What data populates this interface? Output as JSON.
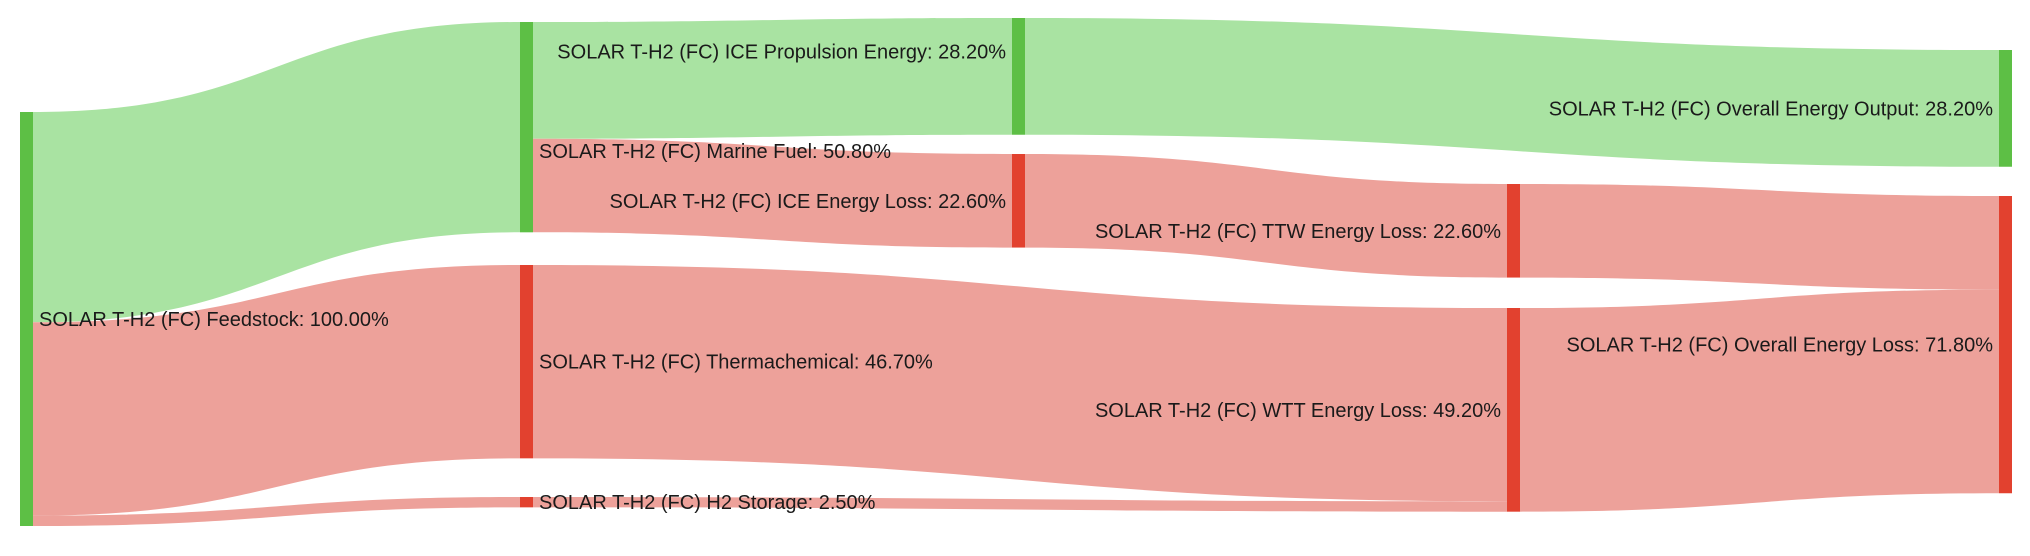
{
  "colors": {
    "green_node": "#5dbf45",
    "red_node": "#e2412f",
    "green_link": "#a9e3a2",
    "red_link": "#eda19a",
    "text": "#1a1a1a"
  },
  "nodes": [
    {
      "id": "feedstock",
      "label": "SOLAR T-H2 (FC) Feedstock: 100.00%",
      "color": "green"
    },
    {
      "id": "marine_fuel",
      "label": "SOLAR T-H2 (FC) Marine Fuel: 50.80%",
      "color": "green"
    },
    {
      "id": "thermachemical",
      "label": "SOLAR T-H2 (FC) Thermachemical: 46.70%",
      "color": "red"
    },
    {
      "id": "h2_storage",
      "label": "SOLAR T-H2 (FC) H2 Storage: 2.50%",
      "color": "red"
    },
    {
      "id": "ice_propulsion",
      "label": "SOLAR T-H2 (FC) ICE Propulsion Energy: 28.20%",
      "color": "green"
    },
    {
      "id": "ice_loss",
      "label": "SOLAR T-H2 (FC) ICE Energy Loss: 22.60%",
      "color": "red"
    },
    {
      "id": "ttw_loss",
      "label": "SOLAR T-H2 (FC) TTW Energy Loss: 22.60%",
      "color": "red"
    },
    {
      "id": "wtt_loss",
      "label": "SOLAR T-H2 (FC) WTT Energy Loss: 49.20%",
      "color": "red"
    },
    {
      "id": "overall_output",
      "label": "SOLAR T-H2 (FC) Overall Energy Output: 28.20%",
      "color": "green"
    },
    {
      "id": "overall_loss",
      "label": "SOLAR T-H2 (FC) Overall Energy Loss: 71.80%",
      "color": "red"
    }
  ],
  "links": [
    {
      "source": "feedstock",
      "target": "marine_fuel",
      "value": 50.8,
      "color": "green"
    },
    {
      "source": "feedstock",
      "target": "thermachemical",
      "value": 46.7,
      "color": "red"
    },
    {
      "source": "feedstock",
      "target": "h2_storage",
      "value": 2.5,
      "color": "red"
    },
    {
      "source": "marine_fuel",
      "target": "ice_propulsion",
      "value": 28.2,
      "color": "green"
    },
    {
      "source": "marine_fuel",
      "target": "ice_loss",
      "value": 22.6,
      "color": "red"
    },
    {
      "source": "ice_propulsion",
      "target": "overall_output",
      "value": 28.2,
      "color": "green"
    },
    {
      "source": "ice_loss",
      "target": "ttw_loss",
      "value": 22.6,
      "color": "red"
    },
    {
      "source": "thermachemical",
      "target": "wtt_loss",
      "value": 46.7,
      "color": "red"
    },
    {
      "source": "h2_storage",
      "target": "wtt_loss",
      "value": 2.5,
      "color": "red"
    },
    {
      "source": "ttw_loss",
      "target": "overall_loss",
      "value": 22.6,
      "color": "red"
    },
    {
      "source": "wtt_loss",
      "target": "overall_loss",
      "value": 49.2,
      "color": "red"
    }
  ]
}
